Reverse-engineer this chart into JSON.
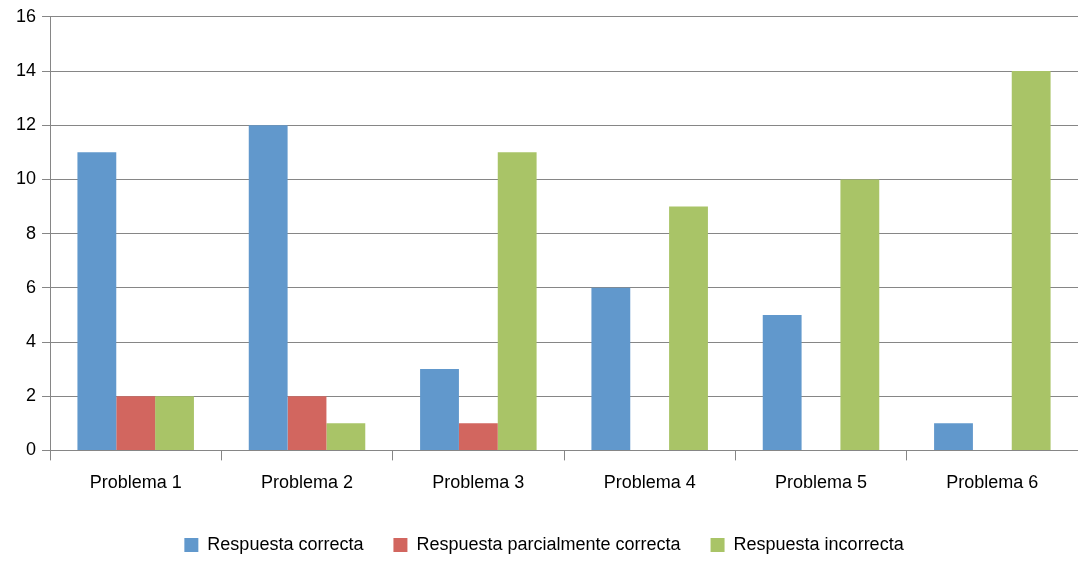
{
  "chart_data": {
    "type": "bar",
    "categories": [
      "Problema 1",
      "Problema 2",
      "Problema 3",
      "Problema 4",
      "Problema 5",
      "Problema 6"
    ],
    "series": [
      {
        "name": "Respuesta correcta",
        "color": "#6198cc",
        "values": [
          11,
          12,
          3,
          6,
          5,
          1
        ]
      },
      {
        "name": "Respuesta parcialmente correcta",
        "color": "#d2665f",
        "values": [
          2,
          2,
          1,
          0,
          0,
          0
        ]
      },
      {
        "name": "Respuesta incorrecta",
        "color": "#a9c467",
        "values": [
          2,
          1,
          11,
          9,
          10,
          14
        ]
      }
    ],
    "ylim": [
      0,
      16
    ],
    "yticks": [
      0,
      2,
      4,
      6,
      8,
      10,
      12,
      14,
      16
    ],
    "grid": "y",
    "legend": "bottom"
  }
}
